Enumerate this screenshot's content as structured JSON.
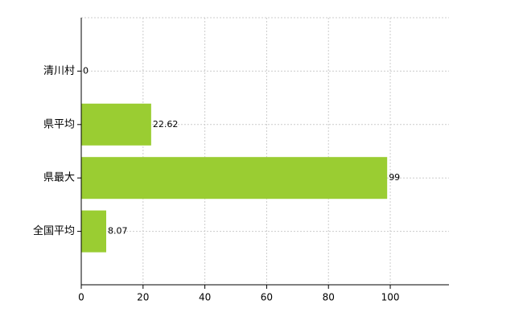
{
  "chart_data": {
    "type": "bar",
    "orientation": "horizontal",
    "categories": [
      "清川村",
      "県平均",
      "県最大",
      "全国平均"
    ],
    "values": [
      0,
      22.62,
      99,
      8.07
    ],
    "color": "#9acd32",
    "xlim": [
      0,
      119
    ],
    "xticks": [
      0,
      20,
      40,
      60,
      80,
      100
    ],
    "grid": true
  }
}
